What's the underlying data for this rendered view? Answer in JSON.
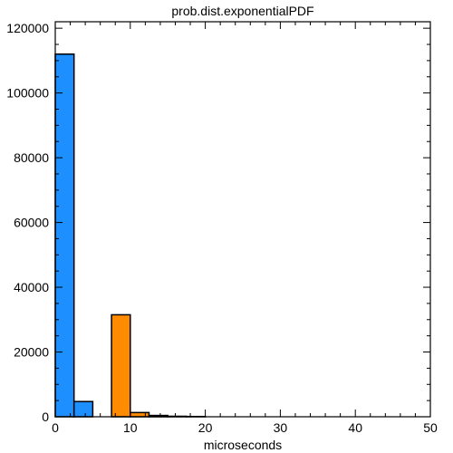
{
  "chart_data": {
    "type": "bar",
    "title": "prob.dist.exponentialPDF",
    "xlabel": "microseconds",
    "ylabel": "",
    "xlim": [
      0,
      50
    ],
    "ylim": [
      0,
      122000
    ],
    "x_ticks": [
      0,
      10,
      20,
      30,
      40,
      50
    ],
    "y_ticks": [
      0,
      20000,
      40000,
      60000,
      80000,
      100000,
      120000
    ],
    "grid": false,
    "series": [
      {
        "color": "#1e8fff",
        "bins": [
          {
            "x0": 0,
            "x1": 2.5,
            "value": 112000
          },
          {
            "x0": 2.5,
            "x1": 5,
            "value": 4700
          }
        ]
      },
      {
        "color": "#ff8c00",
        "bins": [
          {
            "x0": 7.5,
            "x1": 10,
            "value": 31500
          },
          {
            "x0": 10,
            "x1": 12.5,
            "value": 1300
          },
          {
            "x0": 12.5,
            "x1": 15,
            "value": 400
          },
          {
            "x0": 15,
            "x1": 17.5,
            "value": 150
          },
          {
            "x0": 17.5,
            "x1": 20,
            "value": 80
          }
        ]
      }
    ]
  }
}
